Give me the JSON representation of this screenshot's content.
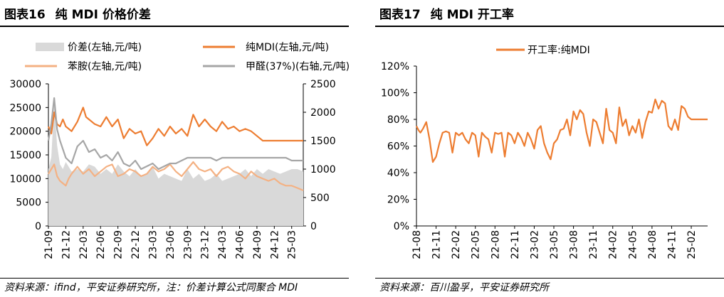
{
  "left": {
    "title_num": "图表16",
    "title_text": "纯 MDI 价格价差",
    "source": "资料来源：ifind，平安证券研究所，注：价差计算公式同聚合 MDI",
    "chart_data": {
      "type": "line",
      "x_ticks": [
        "21-09",
        "21-12",
        "22-03",
        "22-06",
        "22-09",
        "22-12",
        "23-03",
        "23-06",
        "23-09",
        "23-12",
        "24-03",
        "24-06",
        "24-09",
        "24-12",
        "25-03"
      ],
      "x_range": [
        "2021-09",
        "2025-05"
      ],
      "y_left": {
        "ticks": [
          0,
          5000,
          10000,
          15000,
          20000,
          25000,
          30000
        ],
        "range": [
          0,
          30000
        ]
      },
      "y_right": {
        "ticks": [
          0,
          500,
          1000,
          1500,
          2000,
          2500
        ],
        "range": [
          0,
          2500
        ]
      },
      "legend": [
        "价差(左轴,元/吨)",
        "纯MDI(左轴,元/吨)",
        "苯胺(左轴,元/吨)",
        "甲醛(37%)(右轴,元/吨)"
      ],
      "series": [
        {
          "name": "价差(左轴,元/吨)",
          "type": "area",
          "axis": "left",
          "color": "#d9d9d9",
          "x": [
            0,
            0.5,
            1,
            1.5,
            2,
            2.5,
            3,
            3.5,
            4,
            5,
            6,
            7,
            8,
            9,
            10,
            11,
            12,
            13,
            14,
            15,
            16,
            17,
            18,
            19,
            20,
            21,
            22,
            23,
            24,
            25,
            26,
            27,
            28,
            29,
            30,
            31,
            32,
            33,
            34,
            35,
            36,
            37,
            38,
            39,
            40,
            41,
            42,
            43,
            44
          ],
          "y": [
            12000,
            14500,
            26000,
            17000,
            13000,
            12000,
            13500,
            12500,
            11500,
            12000,
            11500,
            13000,
            12500,
            11000,
            12000,
            11000,
            13000,
            11500,
            10500,
            12000,
            10500,
            11000,
            12500,
            10000,
            11000,
            10500,
            10000,
            9500,
            12000,
            10000,
            11000,
            9500,
            10000,
            11000,
            9500,
            10000,
            10500,
            11000,
            12000,
            10500,
            12000,
            11000,
            12000,
            11500,
            11000,
            11500,
            12000,
            12000,
            11500
          ]
        },
        {
          "name": "纯MDI(左轴,元/吨)",
          "type": "line",
          "axis": "left",
          "color": "#ed7d31",
          "x": [
            0,
            0.5,
            1,
            1.5,
            2,
            2.5,
            3,
            3.5,
            4,
            5,
            6,
            6.5,
            7,
            8,
            9,
            10,
            11,
            12,
            13,
            14,
            15,
            16,
            17,
            18,
            19,
            20,
            21,
            22,
            23,
            24,
            25,
            26,
            27,
            28,
            29,
            30,
            31,
            32,
            33,
            34,
            35,
            36,
            37,
            38,
            39,
            40,
            41,
            42,
            43,
            44
          ],
          "y": [
            21000,
            19500,
            24000,
            21500,
            21000,
            22500,
            21000,
            20500,
            20000,
            22000,
            25000,
            23000,
            22500,
            21500,
            21000,
            23000,
            21000,
            22500,
            18500,
            20500,
            19500,
            20000,
            17000,
            18500,
            20500,
            19000,
            21000,
            19500,
            20500,
            19000,
            23500,
            21000,
            22500,
            21000,
            20000,
            22000,
            20500,
            21000,
            20000,
            20500,
            20000,
            19000,
            18000,
            18000,
            18000,
            18000,
            18000,
            18000,
            18000,
            18000
          ]
        },
        {
          "name": "苯胺(左轴,元/吨)",
          "type": "line",
          "axis": "left",
          "color": "#f4b183",
          "x": [
            0,
            0.5,
            1,
            1.5,
            2,
            2.5,
            3,
            3.5,
            4,
            5,
            6,
            7,
            8,
            9,
            10,
            11,
            12,
            13,
            14,
            15,
            16,
            17,
            18,
            19,
            20,
            21,
            22,
            23,
            24,
            25,
            26,
            27,
            28,
            29,
            30,
            31,
            32,
            33,
            34,
            35,
            36,
            37,
            38,
            39,
            40,
            41,
            42,
            43,
            44
          ],
          "y": [
            11000,
            12000,
            13000,
            10500,
            9500,
            9000,
            8500,
            10000,
            11000,
            12500,
            11000,
            12000,
            10500,
            11500,
            12500,
            13000,
            10500,
            11000,
            12000,
            11500,
            10500,
            11000,
            12500,
            11500,
            12000,
            13000,
            11500,
            10500,
            12000,
            13500,
            12000,
            11500,
            12000,
            10500,
            12000,
            12500,
            11500,
            11000,
            10000,
            11500,
            10500,
            10000,
            9500,
            10000,
            9000,
            8500,
            8500,
            8000,
            7500
          ]
        },
        {
          "name": "甲醛(37%)(右轴,元/吨)",
          "type": "line",
          "axis": "right",
          "color": "#a6a6a6",
          "x": [
            0,
            0.5,
            1,
            1.5,
            2,
            2.5,
            3,
            3.5,
            4,
            5,
            6,
            7,
            8,
            9,
            10,
            11,
            12,
            13,
            14,
            15,
            16,
            17,
            18,
            19,
            20,
            21,
            22,
            23,
            24,
            25,
            26,
            27,
            28,
            29,
            30,
            31,
            32,
            33,
            34,
            35,
            36,
            37,
            38,
            39,
            40,
            41,
            42,
            43,
            44
          ],
          "y": [
            1500,
            1800,
            2250,
            1700,
            1500,
            1350,
            1200,
            1150,
            1100,
            1400,
            1500,
            1300,
            1350,
            1200,
            1250,
            1150,
            1300,
            1100,
            1050,
            1150,
            1000,
            1050,
            1100,
            1000,
            1050,
            1100,
            1100,
            1150,
            1200,
            1200,
            1200,
            1200,
            1200,
            1150,
            1200,
            1200,
            1200,
            1200,
            1200,
            1200,
            1200,
            1200,
            1200,
            1200,
            1200,
            1200,
            1150,
            1150,
            1150
          ]
        }
      ]
    }
  },
  "right": {
    "title_num": "图表17",
    "title_text": "纯 MDI 开工率",
    "source": "资料来源：百川盈孚，平安证券研究所",
    "chart_data": {
      "type": "line",
      "x_ticks": [
        "21-08",
        "21-11",
        "22-02",
        "22-05",
        "22-08",
        "22-11",
        "23-02",
        "23-05",
        "23-08",
        "23-11",
        "24-02",
        "24-05",
        "24-08",
        "24-11",
        "25-02"
      ],
      "y": {
        "ticks": [
          "0%",
          "20%",
          "40%",
          "60%",
          "80%",
          "100%",
          "120%"
        ],
        "range": [
          0,
          120
        ]
      },
      "legend": [
        "开工率:纯MDI"
      ],
      "series": [
        {
          "name": "开工率:纯MDI",
          "color": "#ed7d31",
          "x": [
            0,
            0.3,
            0.6,
            1,
            1.5,
            2,
            2.2,
            2.5,
            3,
            3.5,
            4,
            4.5,
            5,
            5.5,
            6,
            6.5,
            7,
            7.5,
            8,
            8.5,
            9,
            9.5,
            10,
            10.5,
            11,
            11.5,
            12,
            12.5,
            13,
            13.5,
            14,
            14.5,
            15,
            15.5,
            16,
            16.5,
            17,
            17.5,
            18,
            18.5,
            19,
            19.5,
            20,
            20.5,
            21,
            21.5,
            22,
            22.5,
            23,
            23.5,
            24,
            24.5,
            25,
            25.5,
            26,
            26.5,
            27,
            27.5,
            28,
            28.5,
            29,
            29.5,
            30,
            30.5,
            31,
            31.5,
            32,
            32.5,
            33,
            33.5,
            34,
            34.5,
            35,
            35.5,
            36,
            36.5,
            37,
            37.5,
            38,
            38.5,
            39,
            39.5,
            40,
            40.5,
            41,
            41.5,
            42,
            42.5,
            43,
            43.5,
            44,
            44.5
          ],
          "y": [
            75,
            72,
            70,
            73,
            78,
            65,
            58,
            48,
            52,
            62,
            70,
            71,
            70,
            55,
            70,
            68,
            70,
            65,
            62,
            70,
            68,
            52,
            70,
            67,
            65,
            55,
            70,
            69,
            70,
            52,
            70,
            68,
            62,
            70,
            66,
            60,
            70,
            65,
            58,
            72,
            75,
            62,
            55,
            50,
            62,
            65,
            72,
            73,
            80,
            68,
            86,
            80,
            87,
            84,
            70,
            60,
            80,
            78,
            70,
            62,
            88,
            72,
            70,
            62,
            89,
            75,
            80,
            68,
            75,
            70,
            80,
            66,
            78,
            86,
            85,
            95,
            88,
            94,
            92,
            75,
            72,
            80,
            72,
            90,
            88,
            82,
            80,
            80,
            80,
            80,
            80,
            80
          ]
        }
      ]
    }
  }
}
